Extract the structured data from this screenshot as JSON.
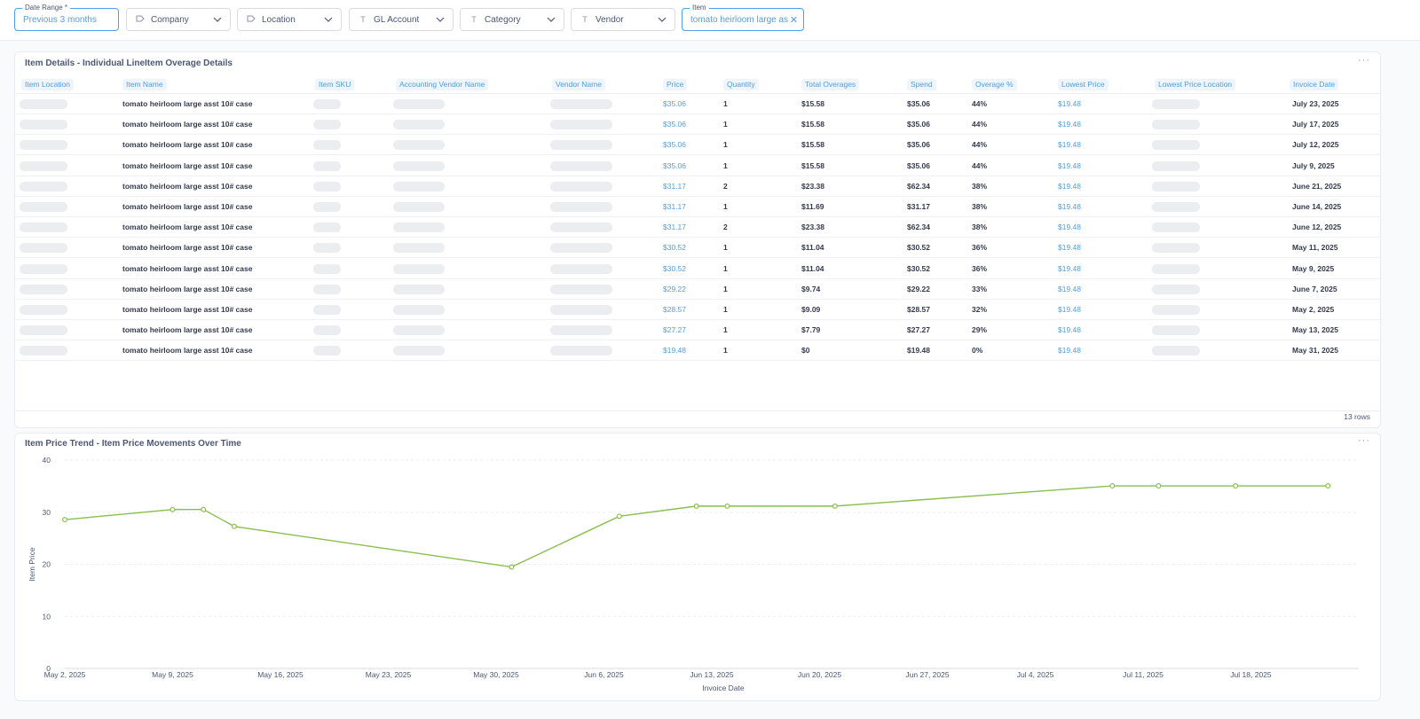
{
  "filters": {
    "date_range": {
      "legend": "Date Range *",
      "value": "Previous 3 months"
    },
    "company": {
      "label": "Company",
      "icon": "tag-icon"
    },
    "location": {
      "label": "Location",
      "icon": "tag-icon"
    },
    "gl_account": {
      "label": "GL Account",
      "icon": "text-icon"
    },
    "category": {
      "label": "Category",
      "icon": "text-icon"
    },
    "vendor": {
      "label": "Vendor",
      "icon": "text-icon"
    },
    "item": {
      "legend": "Item",
      "value": "tomato heirloom large asst"
    }
  },
  "details": {
    "title": "Item Details - Individual LineItem Overage Details",
    "menu": "···",
    "columns": [
      "Item Location",
      "Item Name",
      "Item SKU",
      "Accounting Vendor Name",
      "Vendor Name",
      "Price",
      "Quantity",
      "Total Overages",
      "Spend",
      "Overage %",
      "Lowest Price",
      "Lowest Price Location",
      "Invoice Date"
    ],
    "rows": [
      {
        "name": "tomato heirloom large asst 10# case",
        "price": "$35.06",
        "qty": "1",
        "overages": "$15.58",
        "spend": "$35.06",
        "pct": "44%",
        "lowest": "$19.48",
        "date": "July 23, 2025"
      },
      {
        "name": "tomato heirloom large asst 10# case",
        "price": "$35.06",
        "qty": "1",
        "overages": "$15.58",
        "spend": "$35.06",
        "pct": "44%",
        "lowest": "$19.48",
        "date": "July 17, 2025"
      },
      {
        "name": "tomato heirloom large asst 10# case",
        "price": "$35.06",
        "qty": "1",
        "overages": "$15.58",
        "spend": "$35.06",
        "pct": "44%",
        "lowest": "$19.48",
        "date": "July 12, 2025"
      },
      {
        "name": "tomato heirloom large asst 10# case",
        "price": "$35.06",
        "qty": "1",
        "overages": "$15.58",
        "spend": "$35.06",
        "pct": "44%",
        "lowest": "$19.48",
        "date": "July 9, 2025"
      },
      {
        "name": "tomato heirloom large asst 10# case",
        "price": "$31.17",
        "qty": "2",
        "overages": "$23.38",
        "spend": "$62.34",
        "pct": "38%",
        "lowest": "$19.48",
        "date": "June 21, 2025"
      },
      {
        "name": "tomato heirloom large asst 10# case",
        "price": "$31.17",
        "qty": "1",
        "overages": "$11.69",
        "spend": "$31.17",
        "pct": "38%",
        "lowest": "$19.48",
        "date": "June 14, 2025"
      },
      {
        "name": "tomato heirloom large asst 10# case",
        "price": "$31.17",
        "qty": "2",
        "overages": "$23.38",
        "spend": "$62.34",
        "pct": "38%",
        "lowest": "$19.48",
        "date": "June 12, 2025"
      },
      {
        "name": "tomato heirloom large asst 10# case",
        "price": "$30.52",
        "qty": "1",
        "overages": "$11.04",
        "spend": "$30.52",
        "pct": "36%",
        "lowest": "$19.48",
        "date": "May 11, 2025"
      },
      {
        "name": "tomato heirloom large asst 10# case",
        "price": "$30.52",
        "qty": "1",
        "overages": "$11.04",
        "spend": "$30.52",
        "pct": "36%",
        "lowest": "$19.48",
        "date": "May 9, 2025"
      },
      {
        "name": "tomato heirloom large asst 10# case",
        "price": "$29.22",
        "qty": "1",
        "overages": "$9.74",
        "spend": "$29.22",
        "pct": "33%",
        "lowest": "$19.48",
        "date": "June 7, 2025"
      },
      {
        "name": "tomato heirloom large asst 10# case",
        "price": "$28.57",
        "qty": "1",
        "overages": "$9.09",
        "spend": "$28.57",
        "pct": "32%",
        "lowest": "$19.48",
        "date": "May 2, 2025"
      },
      {
        "name": "tomato heirloom large asst 10# case",
        "price": "$27.27",
        "qty": "1",
        "overages": "$7.79",
        "spend": "$27.27",
        "pct": "29%",
        "lowest": "$19.48",
        "date": "May 13, 2025"
      },
      {
        "name": "tomato heirloom large asst 10# case",
        "price": "$19.48",
        "qty": "1",
        "overages": "$0",
        "spend": "$19.48",
        "pct": "0%",
        "lowest": "$19.48",
        "date": "May 31, 2025"
      }
    ],
    "row_count": "13 rows"
  },
  "trend": {
    "title": "Item Price Trend - Item Price Movements Over Time",
    "menu": "···"
  },
  "chart_data": {
    "type": "line",
    "title": "Item Price Trend - Item Price Movements Over Time",
    "xlabel": "Invoice Date",
    "ylabel": "Item Price",
    "ylim": [
      0,
      40
    ],
    "yticks": [
      0,
      10,
      20,
      30,
      40
    ],
    "xlim": [
      "2025-05-02",
      "2025-07-25"
    ],
    "xticks": [
      "2025-05-02",
      "2025-05-09",
      "2025-05-16",
      "2025-05-23",
      "2025-05-30",
      "2025-06-06",
      "2025-06-13",
      "2025-06-20",
      "2025-06-27",
      "2025-07-04",
      "2025-07-11",
      "2025-07-18"
    ],
    "xtick_labels": [
      "May 2, 2025",
      "May 9, 2025",
      "May 16, 2025",
      "May 23, 2025",
      "May 30, 2025",
      "Jun 6, 2025",
      "Jun 13, 2025",
      "Jun 20, 2025",
      "Jun 27, 2025",
      "Jul 4, 2025",
      "Jul 11, 2025",
      "Jul 18, 2025"
    ],
    "grid": true,
    "color": "#88bf4d",
    "x": [
      "2025-05-02",
      "2025-05-09",
      "2025-05-11",
      "2025-05-13",
      "2025-05-31",
      "2025-06-07",
      "2025-06-12",
      "2025-06-14",
      "2025-06-21",
      "2025-07-09",
      "2025-07-12",
      "2025-07-17",
      "2025-07-23"
    ],
    "y": [
      28.57,
      30.52,
      30.52,
      27.27,
      19.48,
      29.22,
      31.17,
      31.17,
      31.17,
      35.06,
      35.06,
      35.06,
      35.06
    ]
  }
}
